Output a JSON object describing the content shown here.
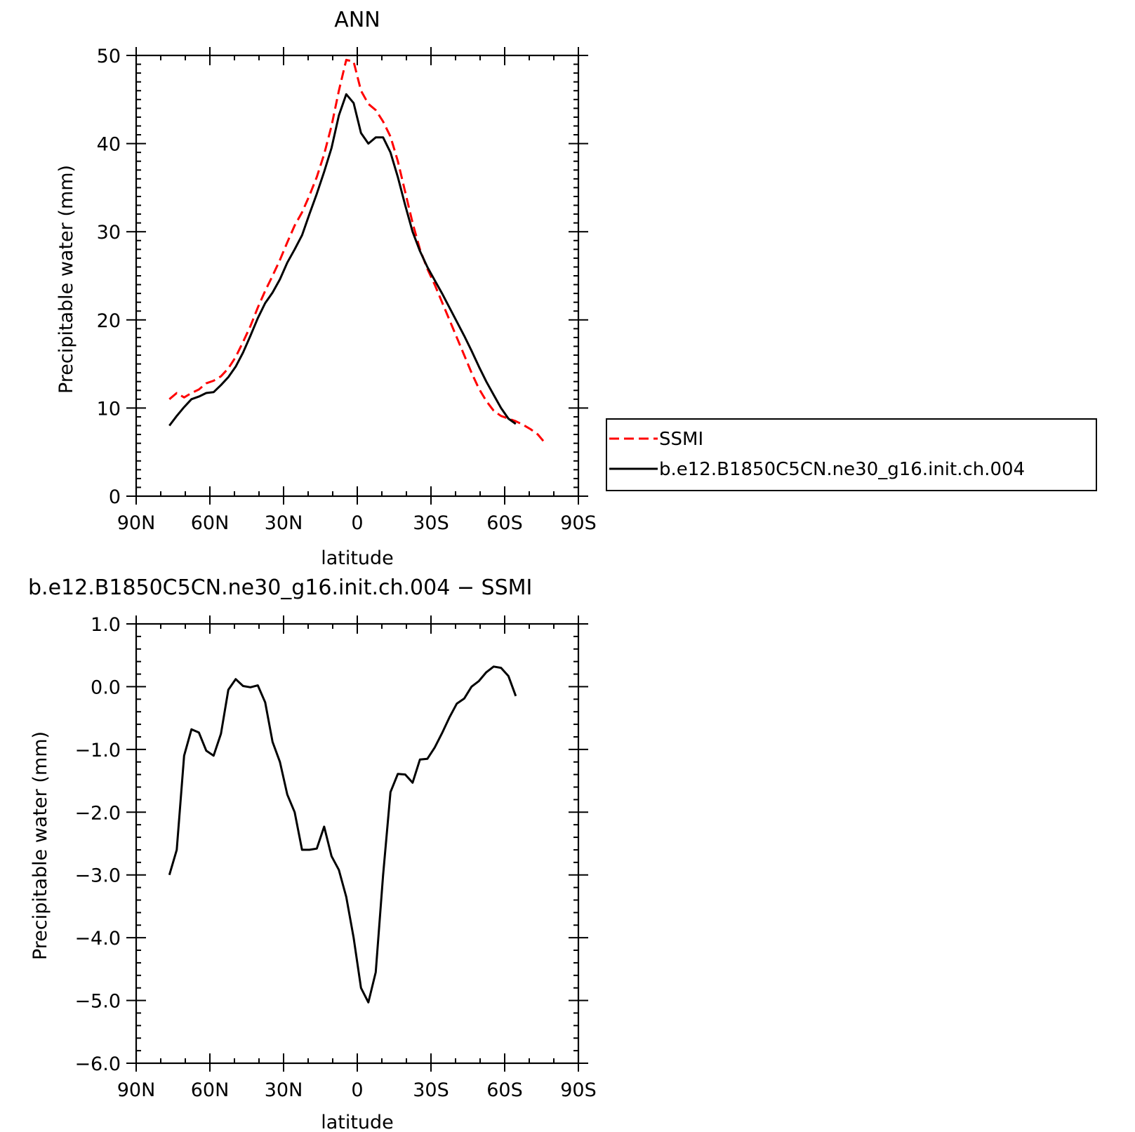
{
  "chart_data": [
    {
      "type": "line",
      "title": "ANN",
      "xlabel": "latitude",
      "ylabel": "Precipitable water (mm)",
      "xlim": [
        90,
        -90
      ],
      "ylim": [
        0,
        50
      ],
      "x_tick_values": [
        90,
        60,
        30,
        0,
        -30,
        -60,
        -90
      ],
      "x_tick_labels": [
        "90N",
        "60N",
        "30N",
        "0",
        "30S",
        "60S",
        "90S"
      ],
      "y_tick_values": [
        0,
        10,
        20,
        30,
        40,
        50
      ],
      "y_tick_labels": [
        "0",
        "10",
        "20",
        "30",
        "40",
        "50"
      ],
      "legend_position": "right",
      "series": [
        {
          "name": "SSMI",
          "color": "#ff0000",
          "style": "dashed",
          "x": [
            76.5,
            73.5,
            70.5,
            67.5,
            64.5,
            61.5,
            58.5,
            55.5,
            52.5,
            49.5,
            46.5,
            43.5,
            40.5,
            37.5,
            34.5,
            31.5,
            28.5,
            25.5,
            22.5,
            19.5,
            16.5,
            13.5,
            10.5,
            7.5,
            4.5,
            1.5,
            -1.5,
            -4.5,
            -7.5,
            -10.5,
            -13.5,
            -16.5,
            -19.5,
            -22.5,
            -25.5,
            -28.5,
            -31.5,
            -34.5,
            -37.5,
            -40.5,
            -43.5,
            -46.5,
            -49.5,
            -52.5,
            -55.5,
            -58.5,
            -61.5,
            -64.5,
            -67.5,
            -70.5,
            -73.5,
            -76.5
          ],
          "y": [
            11.0,
            11.7,
            11.2,
            11.7,
            12.1,
            12.8,
            13.1,
            13.6,
            14.5,
            15.8,
            17.5,
            19.3,
            21.4,
            23.3,
            25.0,
            26.8,
            28.8,
            30.7,
            32.2,
            34.1,
            36.2,
            38.8,
            42.0,
            46.0,
            49.5,
            49.3,
            46.0,
            44.5,
            43.8,
            42.5,
            40.8,
            38.0,
            34.5,
            31.0,
            28.0,
            25.8,
            24.0,
            22.0,
            20.0,
            18.0,
            16.0,
            14.0,
            12.2,
            10.8,
            9.7,
            9.1,
            8.8,
            8.5,
            8.1,
            7.6,
            7.0,
            6.0
          ]
        },
        {
          "name": "b.e12.B1850C5CN.ne30_g16.init.ch.004",
          "color": "#000000",
          "style": "solid",
          "x": [
            76.5,
            73.5,
            70.5,
            67.5,
            64.5,
            61.5,
            58.5,
            55.5,
            52.5,
            49.5,
            46.5,
            43.5,
            40.5,
            37.5,
            34.5,
            31.5,
            28.5,
            25.5,
            22.5,
            19.5,
            16.5,
            13.5,
            10.5,
            7.5,
            4.5,
            1.5,
            -1.5,
            -4.5,
            -7.5,
            -10.5,
            -13.5,
            -16.5,
            -19.5,
            -22.5,
            -25.5,
            -28.5,
            -31.5,
            -34.5,
            -37.5,
            -40.5,
            -43.5,
            -46.5,
            -49.5,
            -52.5,
            -55.5,
            -58.5,
            -61.5,
            -64.5
          ],
          "y": [
            8.0,
            9.1,
            10.1,
            11.0,
            11.3,
            11.7,
            11.8,
            12.6,
            13.5,
            14.7,
            16.3,
            18.2,
            20.2,
            21.9,
            23.1,
            24.6,
            26.5,
            28.0,
            29.6,
            32.0,
            34.3,
            36.8,
            39.5,
            43.2,
            45.6,
            44.6,
            41.2,
            40.0,
            40.7,
            40.7,
            39.0,
            36.2,
            33.0,
            30.0,
            27.8,
            26.0,
            24.5,
            23.0,
            21.4,
            19.8,
            18.2,
            16.5,
            14.7,
            13.0,
            11.5,
            10.0,
            8.8,
            8.2
          ]
        }
      ]
    },
    {
      "type": "line",
      "title": "b.e12.B1850C5CN.ne30_g16.init.ch.004 − SSMI",
      "xlabel": "latitude",
      "ylabel": "Precipitable water (mm)",
      "xlim": [
        90,
        -90
      ],
      "ylim": [
        -6.0,
        1.0
      ],
      "x_tick_values": [
        90,
        60,
        30,
        0,
        -30,
        -60,
        -90
      ],
      "x_tick_labels": [
        "90N",
        "60N",
        "30N",
        "0",
        "30S",
        "60S",
        "90S"
      ],
      "y_tick_values": [
        1.0,
        0.0,
        -1.0,
        -2.0,
        -3.0,
        -4.0,
        -5.0,
        -6.0
      ],
      "y_tick_labels": [
        "1.0",
        "0.0",
        "−1.0",
        "−2.0",
        "−3.0",
        "−4.0",
        "−5.0",
        "−6.0"
      ],
      "series": [
        {
          "color": "#000000",
          "style": "solid",
          "x": [
            76.5,
            73.5,
            70.5,
            67.5,
            64.5,
            61.5,
            58.5,
            55.5,
            52.5,
            49.5,
            46.5,
            43.5,
            40.5,
            37.5,
            34.5,
            31.5,
            28.5,
            25.5,
            22.5,
            19.5,
            16.5,
            13.5,
            10.5,
            7.5,
            4.5,
            1.5,
            -1.5,
            -4.5,
            -7.5,
            -10.5,
            -13.5,
            -16.5,
            -19.5,
            -22.5,
            -25.5,
            -28.5,
            -31.5,
            -34.5,
            -37.5,
            -40.5,
            -43.5,
            -46.5,
            -49.5,
            -52.5,
            -55.5,
            -58.5,
            -61.5,
            -64.5
          ],
          "y": [
            -3.0,
            -2.6,
            -1.1,
            -0.68,
            -0.73,
            -1.02,
            -1.1,
            -0.75,
            -0.05,
            0.12,
            0.01,
            -0.01,
            0.02,
            -0.25,
            -0.88,
            -1.2,
            -1.72,
            -2.0,
            -2.6,
            -2.6,
            -2.58,
            -2.23,
            -2.7,
            -2.92,
            -3.35,
            -4.0,
            -4.8,
            -5.03,
            -4.55,
            -3.0,
            -1.68,
            -1.39,
            -1.4,
            -1.53,
            -1.16,
            -1.15,
            -0.97,
            -0.74,
            -0.49,
            -0.27,
            -0.19,
            0.0,
            0.09,
            0.23,
            0.32,
            0.3,
            0.17,
            -0.15
          ]
        }
      ]
    }
  ]
}
